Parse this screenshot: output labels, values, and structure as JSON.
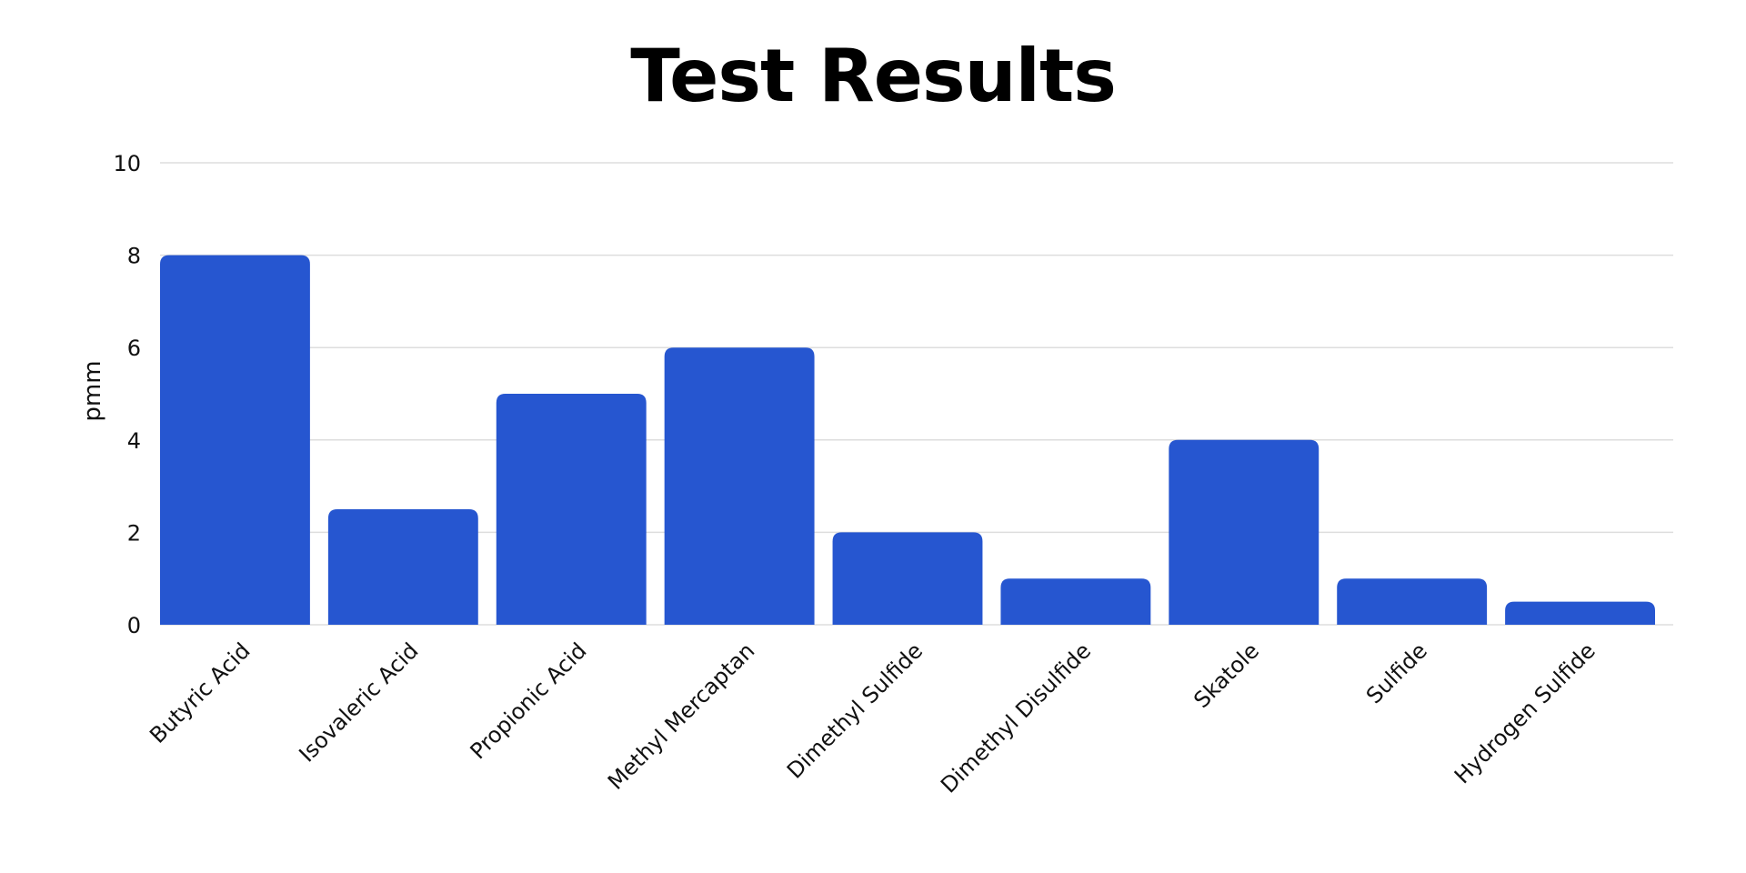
{
  "chart_data": {
    "type": "bar",
    "title": "Test Results",
    "ylabel": "pmm",
    "xlabel": "",
    "ylim": [
      0,
      10
    ],
    "yticks": [
      0,
      2,
      4,
      6,
      8,
      10
    ],
    "grid": true,
    "bar_color": "#2656D0",
    "grid_color": "#DDDDDD",
    "categories": [
      "Butyric Acid",
      "Isovaleric Acid",
      "Propionic Acid",
      "Methyl Mercaptan",
      "Dimethyl Sulfide",
      "Dimethyl Disulfide",
      "Skatole",
      "Sulfide",
      "Hydrogen Sulfide"
    ],
    "values": [
      8,
      2.5,
      5,
      6,
      2,
      1,
      4,
      1,
      0.5
    ]
  }
}
